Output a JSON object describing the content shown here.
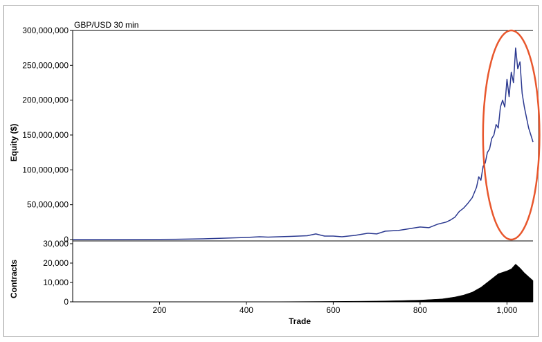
{
  "chart_data": {
    "type": "line",
    "title": "GBP/USD 30 min",
    "xlabel": "Trade",
    "x_ticks": [
      "200",
      "400",
      "600",
      "800",
      "1,000"
    ],
    "xlim": [
      0,
      1060
    ],
    "panels": [
      {
        "type": "line",
        "ylabel": "Equity ($)",
        "ylim": [
          0,
          300000000
        ],
        "y_ticks": [
          "0",
          "50,000,000",
          "100,000,000",
          "150,000,000",
          "200,000,000",
          "250,000,000",
          "300,000,000"
        ],
        "series": [
          {
            "color": "#2b3990",
            "x": [
              0,
              100,
              200,
              250,
              300,
              350,
              400,
              430,
              450,
              500,
              540,
              560,
              570,
              580,
              600,
              620,
              650,
              680,
              700,
              720,
              750,
              780,
              800,
              820,
              840,
              860,
              870,
              880,
              890,
              900,
              910,
              920,
              930,
              935,
              940,
              945,
              950,
              955,
              960,
              965,
              970,
              975,
              980,
              985,
              990,
              995,
              1000,
              1005,
              1010,
              1015,
              1020,
              1025,
              1030,
              1035,
              1040,
              1045,
              1050,
              1055,
              1060
            ],
            "y": [
              0,
              0,
              200000,
              500000,
              1000000,
              2000000,
              3000000,
              4000000,
              3500000,
              4500000,
              5500000,
              8000000,
              6500000,
              5000000,
              5000000,
              4000000,
              6000000,
              9000000,
              8000000,
              12000000,
              13000000,
              16000000,
              18000000,
              17000000,
              22000000,
              25000000,
              28000000,
              32000000,
              40000000,
              45000000,
              52000000,
              60000000,
              75000000,
              90000000,
              85000000,
              105000000,
              110000000,
              125000000,
              130000000,
              145000000,
              150000000,
              165000000,
              160000000,
              190000000,
              200000000,
              190000000,
              230000000,
              205000000,
              240000000,
              225000000,
              275000000,
              245000000,
              255000000,
              210000000,
              190000000,
              175000000,
              160000000,
              150000000,
              140000000
            ]
          }
        ],
        "annotation": {
          "shape": "ellipse",
          "color": "#e8572d",
          "x_range": [
            945,
            1075
          ],
          "y_range": [
            0,
            300000000
          ]
        }
      },
      {
        "type": "area",
        "ylabel": "Contracts",
        "ylim": [
          0,
          30000
        ],
        "y_ticks": [
          "0",
          "10,000",
          "20,000",
          "30,000"
        ],
        "series": [
          {
            "color": "#000000",
            "x": [
              0,
              200,
              400,
              500,
              600,
              700,
              750,
              800,
              850,
              880,
              900,
              920,
              940,
              960,
              980,
              1000,
              1010,
              1020,
              1030,
              1040,
              1050,
              1060
            ],
            "y": [
              0,
              20,
              50,
              100,
              200,
              400,
              600,
              900,
              1500,
              2500,
              3500,
              5000,
              7500,
              11000,
              14500,
              16000,
              17000,
              19500,
              17500,
              15000,
              13000,
              11000
            ]
          }
        ]
      }
    ]
  }
}
